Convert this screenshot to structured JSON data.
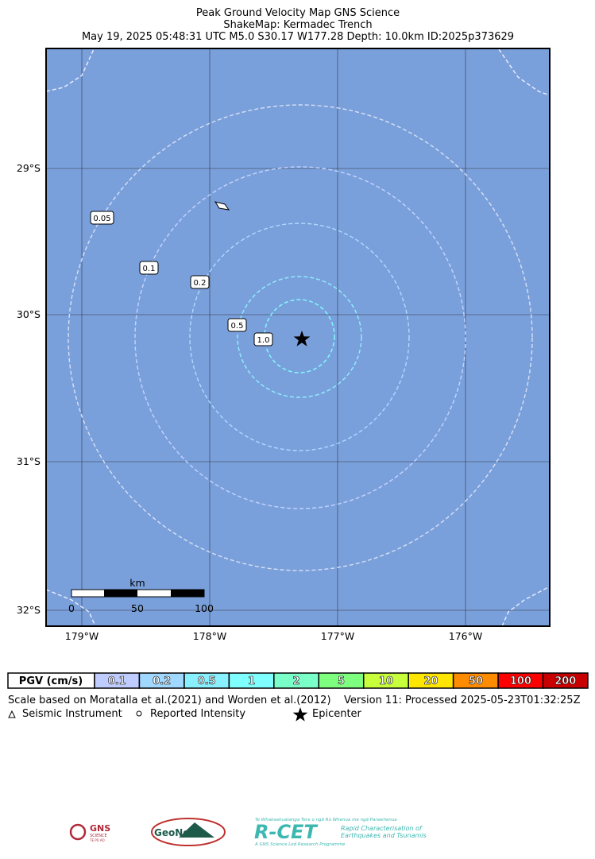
{
  "header": {
    "lines": [
      "Peak Ground Velocity Map GNS Science",
      "ShakeMap: Kermadec Trench",
      "May 19, 2025 05:48:31 UTC M5.0 S30.17 W177.28 Depth: 10.0km ID:2025p373629"
    ]
  },
  "map": {
    "lat_labels": [
      "29°S",
      "30°S",
      "31°S",
      "32°S"
    ],
    "lon_labels": [
      "179°W",
      "178°W",
      "177°W",
      "176°W"
    ],
    "contour_labels": [
      "0.05",
      "0.1",
      "0.2",
      "0.5",
      "1.0"
    ],
    "scale_bar": {
      "unit": "km",
      "labels": [
        "0",
        "50",
        "100"
      ]
    }
  },
  "legend": {
    "title": "PGV (cm/s)",
    "bins": [
      {
        "label": "0.1",
        "color": "#bfccff"
      },
      {
        "label": "0.2",
        "color": "#a0d8ff"
      },
      {
        "label": "0.5",
        "color": "#88f0ff"
      },
      {
        "label": "1",
        "color": "#80ffff"
      },
      {
        "label": "2",
        "color": "#7affc8"
      },
      {
        "label": "5",
        "color": "#7fff7f"
      },
      {
        "label": "10",
        "color": "#c8ff3c"
      },
      {
        "label": "20",
        "color": "#ffe600"
      },
      {
        "label": "50",
        "color": "#ff8c00"
      },
      {
        "label": "100",
        "color": "#ff0000"
      },
      {
        "label": "200",
        "color": "#c80000"
      }
    ]
  },
  "footer": {
    "scale_note": "Scale based on Moratalla et al.(2021) and Worden et al.(2012)",
    "version": "Version 11: Processed 2025-05-23T01:32:25Z",
    "symbols": [
      "Seismic Instrument",
      "Reported Intensity",
      "Epicenter"
    ]
  },
  "logos": {
    "gns": [
      "GNS",
      "SCIENCE",
      "TE PŪ AO"
    ],
    "geonet": "GeoNet",
    "rcet": [
      "Te Whakaahuatanga Tere o ngā Rū Whenua me ngā Parawhenua",
      "R-CET",
      "Rapid Characterisation of",
      "Earthquakes and Tsunamis",
      "A GNS Science Led Research Programme"
    ]
  }
}
